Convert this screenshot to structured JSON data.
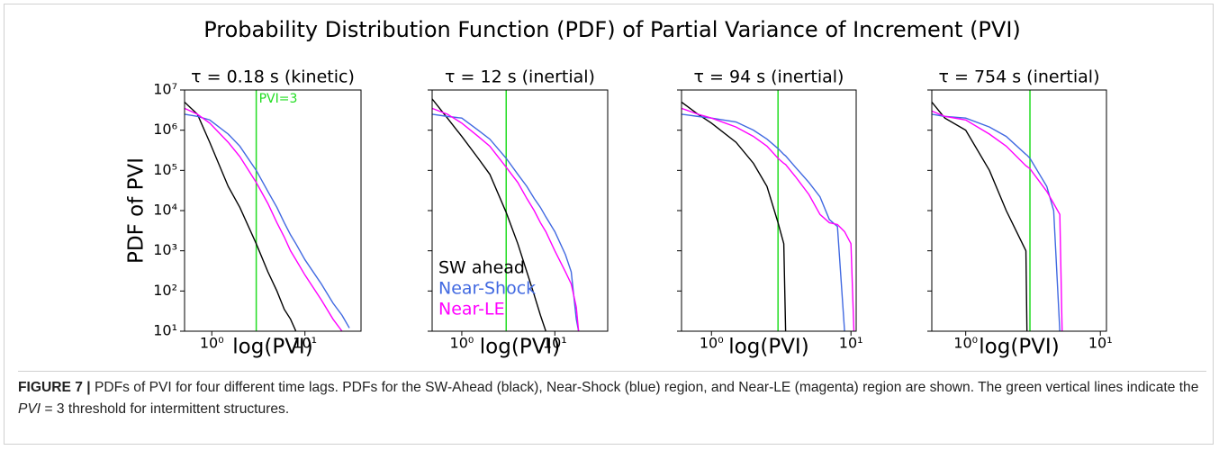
{
  "figure_title": "Probability Distribution Function (PDF) of Partial Variance of Increment (PVI)",
  "caption": {
    "label": "FIGURE 7 |",
    "text_1": "PDFs of PVI for four different time lags. PDFs for the SW-Ahead (black), Near-Shock (blue) region, and Near-LE (magenta) region are shown. The green vertical lines indicate the ",
    "italic": "PVI",
    "text_2": " = 3 threshold for intermittent structures."
  },
  "chart_data": [
    {
      "type": "line",
      "title": "τ = 0.18 s (kinetic)",
      "x_label": "log(PVI)",
      "y_label": "PDF of PVI",
      "xscale": "log",
      "yscale": "log",
      "xlim": [
        0.51,
        40
      ],
      "ylim": [
        10,
        10000000
      ],
      "xticks": [
        {
          "value": 1,
          "label": "10⁰"
        },
        {
          "value": 10,
          "label": "10¹"
        }
      ],
      "yticks": [
        {
          "value": 10,
          "label": "10¹"
        },
        {
          "value": 100,
          "label": "10²"
        },
        {
          "value": 1000,
          "label": "10³"
        },
        {
          "value": 10000,
          "label": "10⁴"
        },
        {
          "value": 100000,
          "label": "10⁵"
        },
        {
          "value": 1000000,
          "label": "10⁶"
        },
        {
          "value": 10000000,
          "label": "10⁷"
        }
      ],
      "vline": {
        "value": 3,
        "color": "#22dd22"
      },
      "annotation": "PVI=3",
      "x": [
        0.51,
        0.7,
        0.95,
        1.5,
        2,
        3,
        4,
        5,
        6,
        7,
        8,
        10,
        15,
        20,
        25,
        30
      ],
      "series": [
        {
          "color": "#000000",
          "values": [
            5000000,
            2500000,
            500000,
            40000,
            12000,
            1500,
            300,
            100,
            35,
            20,
            10,
            null,
            null,
            null,
            null,
            null
          ]
        },
        {
          "color": "#4169e1",
          "values": [
            2500000,
            2200000,
            1800000,
            800000,
            400000,
            100000,
            30000,
            12000,
            5000,
            2500,
            1500,
            600,
            150,
            50,
            25,
            12
          ]
        },
        {
          "color": "#ff00ff",
          "values": [
            3500000,
            2500000,
            1500000,
            500000,
            220000,
            50000,
            15000,
            5000,
            2200,
            1000,
            600,
            250,
            60,
            20,
            10,
            null
          ]
        }
      ]
    },
    {
      "type": "line",
      "title": "τ = 12 s (inertial)",
      "x_label": "log(PVI)",
      "xscale": "log",
      "yscale": "log",
      "xlim": [
        0.48,
        37
      ],
      "ylim": [
        10,
        10000000
      ],
      "xticks": [
        {
          "value": 1,
          "label": "10⁰"
        },
        {
          "value": 10,
          "label": "10¹"
        }
      ],
      "vline": {
        "value": 3,
        "color": "#22dd22"
      },
      "legend": "lower left",
      "x": [
        0.48,
        0.7,
        1,
        1.5,
        2,
        3,
        4,
        5,
        6,
        7,
        8,
        10,
        13,
        15,
        17,
        18
      ],
      "series": [
        {
          "name": "SW ahead",
          "color": "#000000",
          "values": [
            6000000,
            2000000,
            700000,
            200000,
            80000,
            9000,
            1500,
            300,
            80,
            25,
            10,
            null,
            null,
            null,
            null,
            null
          ]
        },
        {
          "name": "Near-Shock",
          "color": "#4169e1",
          "values": [
            2500000,
            2200000,
            2000000,
            1000000,
            600000,
            200000,
            80000,
            40000,
            20000,
            12000,
            7000,
            3000,
            800,
            300,
            20,
            10
          ]
        },
        {
          "name": "Near-LE",
          "color": "#ff00ff",
          "values": [
            3500000,
            2500000,
            1500000,
            700000,
            400000,
            120000,
            50000,
            20000,
            10000,
            5000,
            3000,
            1000,
            300,
            150,
            40,
            10
          ]
        }
      ]
    },
    {
      "type": "line",
      "title": "τ = 94 s (inertial)",
      "x_label": "log(PVI)",
      "xscale": "log",
      "yscale": "log",
      "xlim": [
        0.61,
        10.9
      ],
      "ylim": [
        10,
        10000000
      ],
      "xticks": [
        {
          "value": 1,
          "label": "10⁰"
        },
        {
          "value": 10,
          "label": "10¹"
        }
      ],
      "vline": {
        "value": 3,
        "color": "#22dd22"
      },
      "x": [
        0.61,
        0.8,
        1,
        1.5,
        2,
        2.5,
        3,
        3.3,
        3.4,
        4,
        5,
        6,
        7,
        8,
        9,
        10,
        10.5
      ],
      "series": [
        {
          "color": "#000000",
          "values": [
            5000000,
            2500000,
            1500000,
            500000,
            150000,
            40000,
            5000,
            1500,
            10,
            null,
            null,
            null,
            null,
            null,
            null,
            null,
            null
          ]
        },
        {
          "color": "#4169e1",
          "values": [
            2500000,
            2200000,
            2000000,
            1600000,
            1000000,
            600000,
            350000,
            250000,
            230000,
            120000,
            50000,
            22000,
            6000,
            4000,
            10,
            null,
            null
          ]
        },
        {
          "color": "#ff00ff",
          "values": [
            3500000,
            2500000,
            2000000,
            1200000,
            700000,
            400000,
            200000,
            150000,
            140000,
            70000,
            25000,
            8000,
            5000,
            4500,
            3000,
            1500,
            10
          ]
        }
      ]
    },
    {
      "type": "line",
      "title": "τ = 754 s (inertial)",
      "x_label": "log(PVI)",
      "xscale": "log",
      "yscale": "log",
      "xlim": [
        0.56,
        11.1
      ],
      "ylim": [
        10,
        10000000
      ],
      "xticks": [
        {
          "value": 1,
          "label": "10⁰"
        },
        {
          "value": 10,
          "label": "10¹"
        }
      ],
      "vline": {
        "value": 3,
        "color": "#22dd22"
      },
      "x": [
        0.56,
        0.7,
        1,
        1.5,
        2,
        2.8,
        2.85,
        3,
        4,
        4.5,
        5,
        5.2
      ],
      "series": [
        {
          "color": "#000000",
          "values": [
            5000000,
            2000000,
            1000000,
            100000,
            10000,
            1000,
            10,
            null,
            null,
            null,
            null,
            null
          ]
        },
        {
          "color": "#4169e1",
          "values": [
            2500000,
            2200000,
            2000000,
            1200000,
            700000,
            250000,
            240000,
            200000,
            40000,
            10000,
            10,
            null
          ]
        },
        {
          "color": "#ff00ff",
          "values": [
            3000000,
            2200000,
            1800000,
            800000,
            400000,
            130000,
            125000,
            110000,
            30000,
            15000,
            8000,
            10
          ]
        }
      ]
    }
  ]
}
